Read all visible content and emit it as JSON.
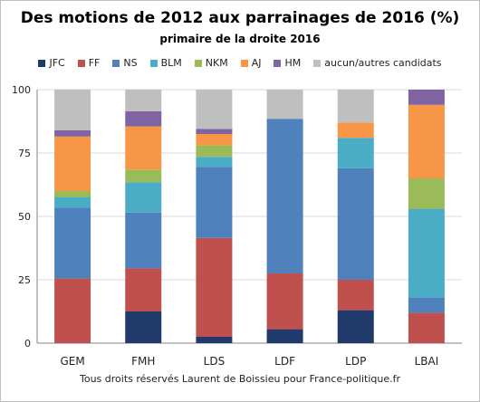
{
  "chart_data": {
    "type": "bar",
    "stacked": true,
    "title": "Des motions de 2012 aux parrainages de 2016 (%)",
    "subtitle": "primaire de la droite 2016",
    "categories": [
      "GEM",
      "FMH",
      "LDS",
      "LDF",
      "LDP",
      "LBAI"
    ],
    "ylim": [
      0,
      100
    ],
    "yticks": [
      0,
      25,
      50,
      75,
      100
    ],
    "grid": true,
    "legend_position": "top",
    "series": [
      {
        "name": "JFC",
        "color": "#1f3a6b",
        "values": [
          0,
          12.5,
          2.5,
          5.5,
          13,
          0
        ]
      },
      {
        "name": "FF",
        "color": "#c0504d",
        "values": [
          25.5,
          17,
          39,
          22,
          12,
          12
        ]
      },
      {
        "name": "NS",
        "color": "#4f81bd",
        "values": [
          28,
          22,
          28,
          61,
          44,
          6
        ]
      },
      {
        "name": "BLM",
        "color": "#4bacc6",
        "values": [
          4,
          12,
          4,
          0,
          12,
          35
        ]
      },
      {
        "name": "NKM",
        "color": "#9bbb59",
        "values": [
          2.5,
          5,
          4.5,
          0,
          0,
          12
        ]
      },
      {
        "name": "AJ",
        "color": "#f79646",
        "values": [
          21.5,
          17,
          4.5,
          0,
          6,
          29
        ]
      },
      {
        "name": "HM",
        "color": "#8064a2",
        "values": [
          2.5,
          6,
          2,
          0,
          0,
          6
        ]
      },
      {
        "name": "aucun/autres candidats",
        "color": "#bfbfbf",
        "values": [
          16,
          8.5,
          15.5,
          11.5,
          13,
          0
        ]
      }
    ]
  },
  "footer": "Tous droits réservés Laurent de Boissieu pour France-politique.fr"
}
